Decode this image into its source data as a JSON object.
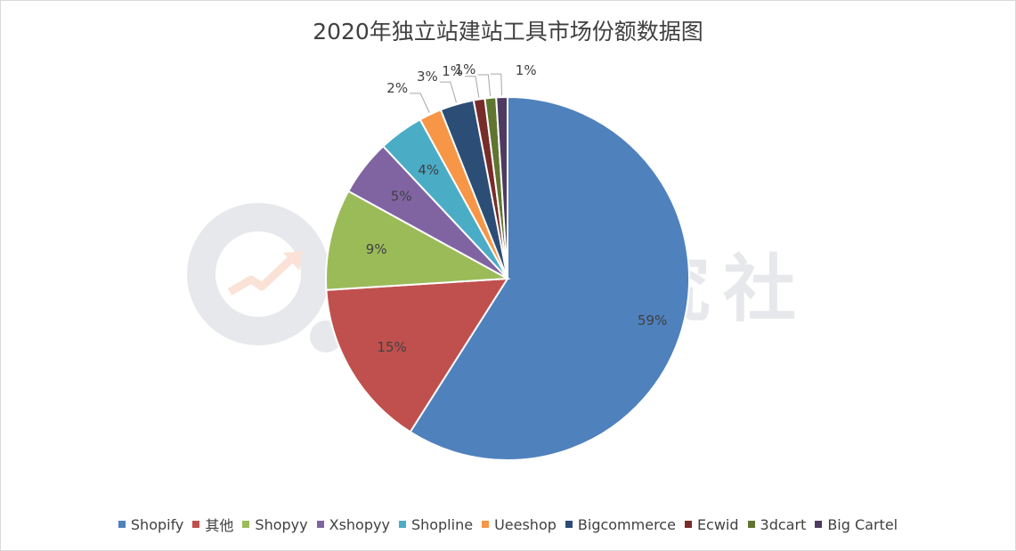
{
  "chart_data": {
    "type": "pie",
    "title": "2020年独立站建站工具市场份额数据图",
    "series": [
      {
        "values": [
          59,
          15,
          9,
          5,
          4,
          2,
          3,
          1,
          1,
          1
        ],
        "labels": [
          "59%",
          "15%",
          "9%",
          "5%",
          "4%",
          "2%",
          "3%",
          "1%",
          "1%",
          "1%"
        ]
      }
    ],
    "categories": [
      "Shopify",
      "其他",
      "Shopyy",
      "Xshopyy",
      "Shopline",
      "Ueeshop",
      "Bigcommerce",
      "Ecwid",
      "3dcart",
      "Big Cartel"
    ],
    "colors": [
      "#4f81bd",
      "#c0504d",
      "#9bbb59",
      "#8064a2",
      "#4bacc6",
      "#f79646",
      "#2c4d75",
      "#772c2a",
      "#5f7530",
      "#4d3b62"
    ],
    "start_angle_deg": 0,
    "direction": "clockwise",
    "legend_position": "bottom"
  },
  "watermark": {
    "text": "港股研究社",
    "logo_icon": "gelonghui-logo-icon"
  }
}
